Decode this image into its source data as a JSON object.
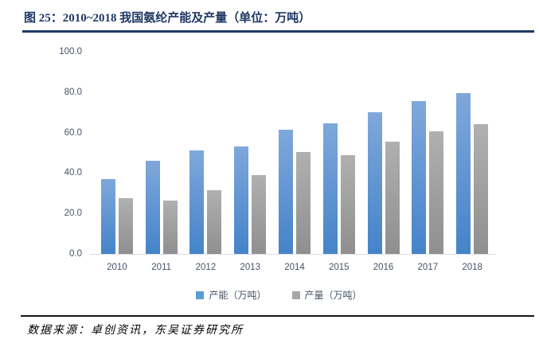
{
  "header": {
    "title": "图 25：2010~2018 我国氨纶产能及产量（单位：万吨）",
    "rule_color": "#203864"
  },
  "footer": {
    "source": "数据来源：卓创资讯，东吴证券研究所"
  },
  "chart_data": {
    "type": "bar",
    "title": "2010~2018 我国氨纶产能及产量（单位：万吨）",
    "categories": [
      "2010",
      "2011",
      "2012",
      "2013",
      "2014",
      "2015",
      "2016",
      "2017",
      "2018"
    ],
    "series": [
      {
        "name": "产能（万吨）",
        "values": [
          37,
          46,
          51,
          53,
          61.5,
          64.5,
          70,
          75.5,
          79.5
        ],
        "legend_swatch": "#5B9BD5",
        "color_top": "#7FA8DB",
        "color_bottom": "#4583C9"
      },
      {
        "name": "产量（万吨）",
        "values": [
          27.5,
          26.5,
          31.5,
          39,
          50.5,
          49,
          55.5,
          60.5,
          64
        ],
        "legend_swatch": "#A6A6A6",
        "color_top": "#B0B0B0",
        "color_bottom": "#8F8F8F"
      }
    ],
    "xlabel": "",
    "ylabel": "",
    "ylim": [
      0,
      100
    ],
    "ytick_step": 20,
    "ytick_labels": [
      "100.0",
      "80.0",
      "60.0",
      "40.0",
      "20.0",
      "0.0"
    ],
    "grid": false,
    "legend_position": "bottom",
    "axis_label_color": "#44546A",
    "baseline_color": "#D6DCE5"
  }
}
